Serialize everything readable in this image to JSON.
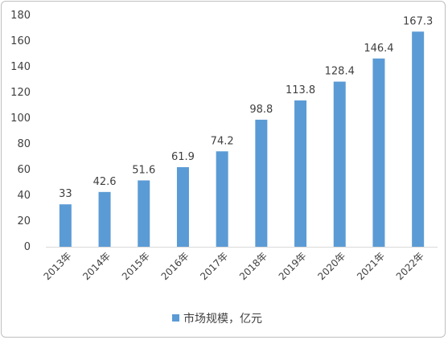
{
  "chart_data": {
    "type": "bar",
    "categories": [
      "2013年",
      "2014年",
      "2015年",
      "2016年",
      "2017年",
      "2018年",
      "2019年",
      "2020年",
      "2021年",
      "2022年"
    ],
    "values": [
      33,
      42.6,
      51.6,
      61.9,
      74.2,
      98.8,
      113.8,
      128.4,
      146.4,
      167.3
    ],
    "value_labels": [
      "33",
      "42.6",
      "51.6",
      "61.9",
      "74.2",
      "98.8",
      "113.8",
      "128.4",
      "146.4",
      "167.3"
    ],
    "series": [
      {
        "name": "市场规模，亿元"
      }
    ],
    "title": "",
    "xlabel": "",
    "ylabel": "",
    "ylim": [
      0,
      180
    ],
    "yticks": [
      0,
      20,
      40,
      60,
      80,
      100,
      120,
      140,
      160,
      180
    ],
    "grid": false,
    "legend_position": "bottom-center",
    "bar_color": "#5b9bd5",
    "axis_color": "#d9d9d9"
  }
}
